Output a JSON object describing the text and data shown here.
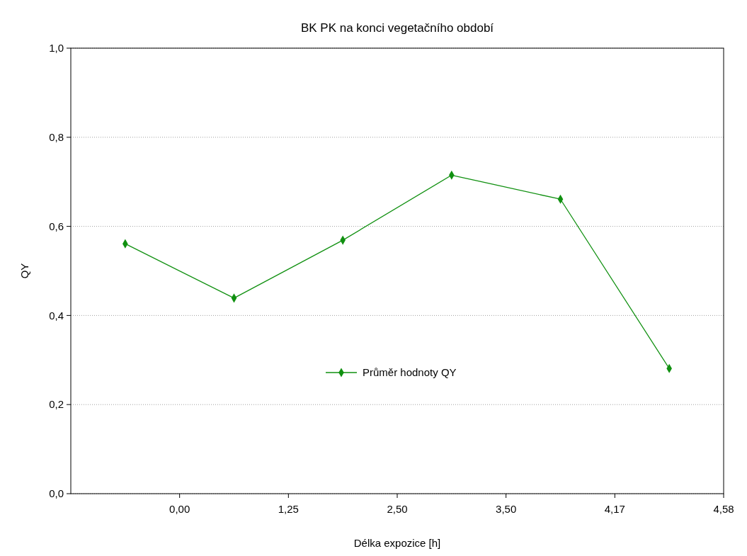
{
  "chart_data": {
    "type": "line",
    "title": "BK PK na konci vegetačního období",
    "xlabel": "Délka expozice [h]",
    "ylabel": "QY",
    "categories": [
      null,
      null,
      null,
      null,
      null,
      null
    ],
    "series": [
      {
        "name": "Průměr hodnoty QY",
        "color": "#109010",
        "values": [
          0.561,
          0.439,
          0.569,
          0.715,
          0.661,
          0.281
        ]
      }
    ],
    "annotations": [
      "0,00",
      "1,25",
      "2,50",
      "3,50",
      "4,17",
      "4,58"
    ],
    "ylim": [
      0,
      1
    ],
    "yticks": [
      {
        "value": 0,
        "label": "0,0"
      },
      {
        "value": 0.2,
        "label": "0,2"
      },
      {
        "value": 0.4,
        "label": "0,4"
      },
      {
        "value": 0.6,
        "label": "0,6"
      },
      {
        "value": 0.8,
        "label": "0,8"
      },
      {
        "value": 1,
        "label": "1,0"
      }
    ],
    "grid": "y",
    "legend": "center",
    "marker": "diamond",
    "line_style": "solid"
  }
}
